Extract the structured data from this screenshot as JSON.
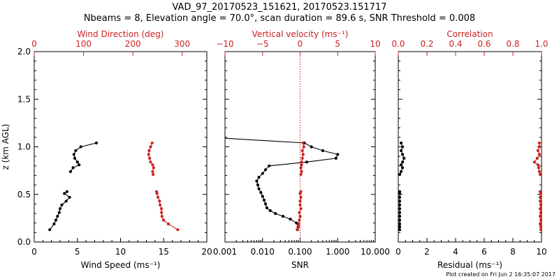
{
  "header": {
    "title_line1": "VAD_97_20170523_151621, 20170523.151717",
    "title_line2": "Nbeams = 8, Elevation angle = 70.0°, scan duration = 89.6 s, SNR Threshold = 0.008"
  },
  "footer": {
    "plot_created": "Plot created on Fri Jun  2 16:35:07 2017"
  },
  "colors": {
    "black_series": "#000000",
    "red_series": "#cc2222"
  },
  "chart_data": [
    {
      "type": "line",
      "panel": "left",
      "ylabel": "z (km AGL)",
      "ylim": [
        0,
        2
      ],
      "yticks": [
        "0.0",
        "0.5",
        "1.0",
        "1.5",
        "2.0"
      ],
      "xlabel_bottom": "Wind Speed (ms⁻¹)",
      "xlim_bottom": [
        0,
        20
      ],
      "xticks_bottom": [
        "0",
        "5",
        "10",
        "15",
        "20"
      ],
      "xlabel_top": "Wind Direction (deg)",
      "xlim_top": [
        0,
        350
      ],
      "xticks_top": [
        "0",
        "100",
        "200",
        "300"
      ],
      "series": [
        {
          "color": "black",
          "axis": "bottom",
          "segments": [
            [
              [
                7.2,
                1.04
              ],
              [
                5.4,
                1.0
              ],
              [
                4.8,
                0.96
              ],
              [
                4.6,
                0.92
              ],
              [
                4.7,
                0.88
              ],
              [
                5.0,
                0.84
              ],
              [
                5.2,
                0.81
              ],
              [
                4.5,
                0.78
              ],
              [
                4.2,
                0.74
              ]
            ],
            [
              [
                3.8,
                0.53
              ],
              [
                3.5,
                0.51
              ],
              [
                4.1,
                0.47
              ],
              [
                3.7,
                0.43
              ],
              [
                3.2,
                0.39
              ],
              [
                3.0,
                0.35
              ],
              [
                2.9,
                0.31
              ],
              [
                2.7,
                0.27
              ],
              [
                2.5,
                0.23
              ],
              [
                2.3,
                0.19
              ],
              [
                1.8,
                0.13
              ]
            ]
          ]
        },
        {
          "color": "red",
          "axis": "top",
          "segments": [
            [
              [
                239,
                1.04
              ],
              [
                236,
                1.0
              ],
              [
                233,
                0.96
              ],
              [
                232,
                0.92
              ],
              [
                234,
                0.88
              ],
              [
                236,
                0.84
              ],
              [
                240,
                0.81
              ],
              [
                242,
                0.78
              ],
              [
                240,
                0.74
              ],
              [
                241,
                0.71
              ]
            ],
            [
              [
                248,
                0.53
              ],
              [
                249,
                0.51
              ],
              [
                251,
                0.47
              ],
              [
                254,
                0.43
              ],
              [
                255,
                0.39
              ],
              [
                258,
                0.35
              ],
              [
                258,
                0.31
              ],
              [
                259,
                0.27
              ],
              [
                262,
                0.23
              ],
              [
                272,
                0.19
              ],
              [
                291,
                0.13
              ]
            ]
          ]
        }
      ]
    },
    {
      "type": "line",
      "panel": "middle",
      "xscale_bottom": "log",
      "xlabel_bottom": "SNR",
      "xlim_bottom": [
        0.001,
        10
      ],
      "xticks_bottom": [
        "0.001",
        "0.010",
        "0.100",
        "1.000",
        "10.000"
      ],
      "xlabel_top": "Vertical velocity (ms⁻¹)",
      "xlim_top": [
        -10,
        10
      ],
      "xticks_top": [
        "−10",
        "−5",
        "0",
        "5",
        "10"
      ],
      "zero_reference_line": "dotted at vertical velocity 0",
      "series": [
        {
          "color": "black",
          "axis": "bottom",
          "segments": [
            [
              [
                0.001,
                1.09
              ],
              [
                0.13,
                1.04
              ],
              [
                0.2,
                1.0
              ],
              [
                0.4,
                0.96
              ],
              [
                1.0,
                0.92
              ],
              [
                0.9,
                0.88
              ],
              [
                0.15,
                0.84
              ],
              [
                0.015,
                0.8
              ],
              [
                0.012,
                0.76
              ],
              [
                0.01,
                0.72
              ],
              [
                0.008,
                0.68
              ],
              [
                0.007,
                0.64
              ],
              [
                0.0075,
                0.6
              ],
              [
                0.008,
                0.56
              ],
              [
                0.009,
                0.52
              ],
              [
                0.01,
                0.48
              ],
              [
                0.011,
                0.44
              ],
              [
                0.012,
                0.4
              ],
              [
                0.013,
                0.36
              ],
              [
                0.016,
                0.33
              ],
              [
                0.022,
                0.3
              ],
              [
                0.035,
                0.27
              ],
              [
                0.055,
                0.24
              ],
              [
                0.08,
                0.2
              ],
              [
                0.09,
                0.16
              ],
              [
                0.085,
                0.13
              ]
            ]
          ]
        },
        {
          "color": "red",
          "axis": "top",
          "segments": [
            [
              [
                0.4,
                1.04
              ],
              [
                0.5,
                1.0
              ],
              [
                0.3,
                0.96
              ],
              [
                0.4,
                0.92
              ],
              [
                0.3,
                0.88
              ],
              [
                0.2,
                0.84
              ],
              [
                0.2,
                0.81
              ],
              [
                0.1,
                0.78
              ],
              [
                0.2,
                0.74
              ],
              [
                0.1,
                0.71
              ]
            ],
            [
              [
                0.1,
                0.53
              ],
              [
                0.0,
                0.51
              ],
              [
                0.1,
                0.47
              ],
              [
                0.0,
                0.43
              ],
              [
                0.0,
                0.39
              ],
              [
                0.1,
                0.35
              ],
              [
                -0.1,
                0.31
              ],
              [
                0.0,
                0.27
              ],
              [
                -0.1,
                0.23
              ],
              [
                -0.2,
                0.19
              ],
              [
                -0.3,
                0.16
              ],
              [
                -0.4,
                0.13
              ]
            ]
          ]
        }
      ]
    },
    {
      "type": "line",
      "panel": "right",
      "xlabel_bottom": "Residual (ms⁻¹)",
      "xlim_bottom": [
        0,
        10
      ],
      "xticks_bottom": [
        "0",
        "2",
        "4",
        "6",
        "8",
        "10"
      ],
      "xlabel_top": "Correlation",
      "xlim_top": [
        0,
        1
      ],
      "xticks_top": [
        "0.0",
        "0.2",
        "0.4",
        "0.6",
        "0.8",
        "1.0"
      ],
      "series": [
        {
          "color": "black",
          "axis": "bottom",
          "segments": [
            [
              [
                0.2,
                1.04
              ],
              [
                0.3,
                1.0
              ],
              [
                0.2,
                0.96
              ],
              [
                0.3,
                0.92
              ],
              [
                0.4,
                0.88
              ],
              [
                0.3,
                0.84
              ],
              [
                0.2,
                0.81
              ],
              [
                0.3,
                0.78
              ],
              [
                0.2,
                0.74
              ],
              [
                0.1,
                0.71
              ]
            ],
            [
              [
                0.1,
                0.53
              ],
              [
                0.1,
                0.51
              ],
              [
                0.1,
                0.47
              ],
              [
                0.1,
                0.43
              ],
              [
                0.1,
                0.39
              ],
              [
                0.1,
                0.35
              ],
              [
                0.1,
                0.31
              ],
              [
                0.1,
                0.27
              ],
              [
                0.1,
                0.23
              ],
              [
                0.1,
                0.19
              ],
              [
                0.1,
                0.16
              ],
              [
                0.1,
                0.13
              ]
            ]
          ]
        },
        {
          "color": "red",
          "axis": "top",
          "segments": [
            [
              [
                0.985,
                1.04
              ],
              [
                0.985,
                1.0
              ],
              [
                0.975,
                0.96
              ],
              [
                0.985,
                0.92
              ],
              [
                0.97,
                0.88
              ],
              [
                0.95,
                0.84
              ],
              [
                0.975,
                0.81
              ],
              [
                0.98,
                0.78
              ],
              [
                0.985,
                0.74
              ],
              [
                0.99,
                0.71
              ]
            ],
            [
              [
                0.99,
                0.53
              ],
              [
                0.995,
                0.51
              ],
              [
                0.99,
                0.47
              ],
              [
                0.99,
                0.43
              ],
              [
                0.995,
                0.39
              ],
              [
                0.99,
                0.35
              ],
              [
                0.995,
                0.31
              ],
              [
                0.99,
                0.27
              ],
              [
                0.995,
                0.23
              ],
              [
                0.99,
                0.19
              ],
              [
                0.995,
                0.16
              ],
              [
                0.995,
                0.13
              ]
            ]
          ]
        }
      ]
    }
  ]
}
